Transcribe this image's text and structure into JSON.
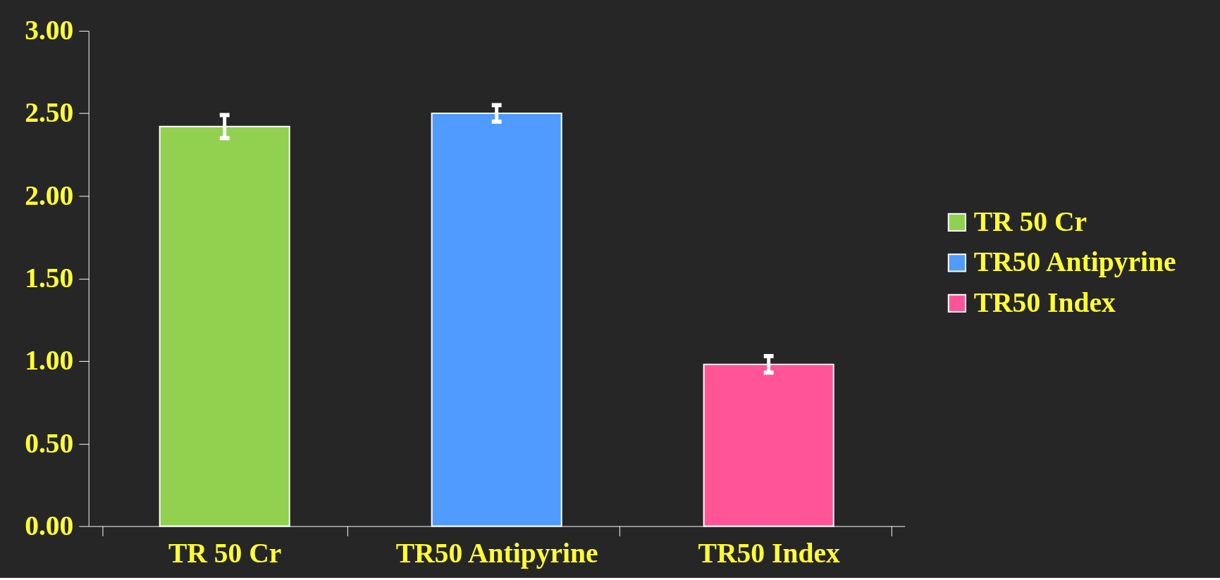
{
  "chart_data": {
    "type": "bar",
    "categories": [
      "TR 50 Cr",
      "TR50 Antipyrine",
      "TR50 Index"
    ],
    "series": [
      {
        "name": "TR 50 Cr",
        "color": "#92d050",
        "values": [
          2.42,
          null,
          null
        ],
        "errors": [
          0.07,
          null,
          null
        ]
      },
      {
        "name": "TR50 Antipyrine",
        "color": "#4f9bff",
        "values": [
          null,
          2.5,
          null
        ],
        "errors": [
          null,
          0.05,
          null
        ]
      },
      {
        "name": "TR50 Index",
        "color": "#ff5596",
        "values": [
          null,
          null,
          0.98
        ],
        "errors": [
          null,
          null,
          0.05
        ]
      }
    ],
    "ylim": [
      0,
      3
    ],
    "yticks": [
      {
        "value": 0,
        "label": "0.00"
      },
      {
        "value": 0.5,
        "label": "0.50"
      },
      {
        "value": 1,
        "label": "1.00"
      },
      {
        "value": 1.5,
        "label": "1.50"
      },
      {
        "value": 2,
        "label": "2.00"
      },
      {
        "value": 2.5,
        "label": "2.50"
      },
      {
        "value": 3,
        "label": "3.00"
      }
    ],
    "legend": "right"
  }
}
